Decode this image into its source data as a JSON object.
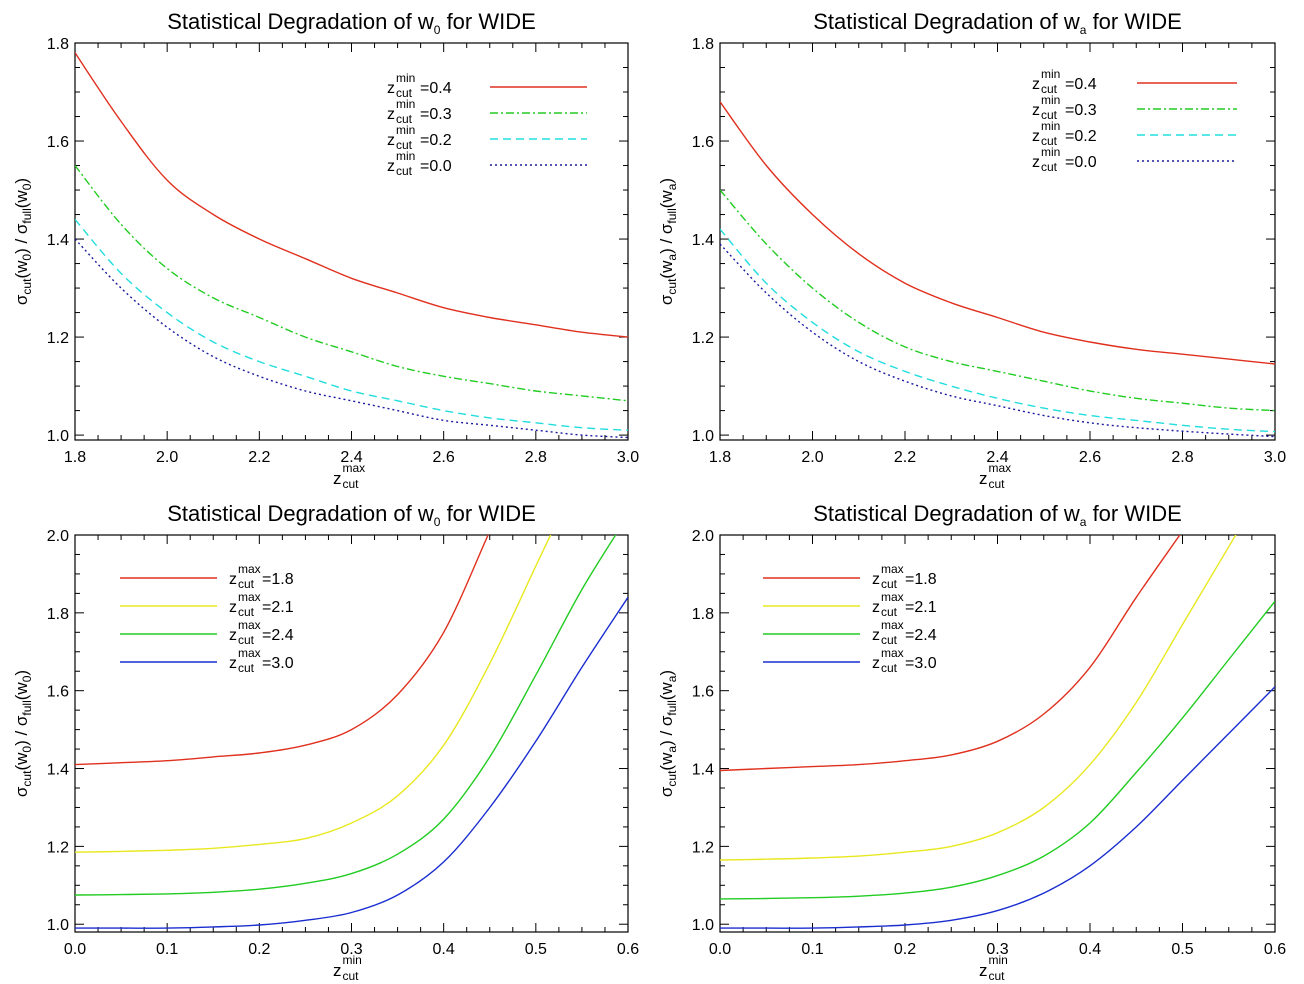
{
  "chart_data": [
    {
      "type": "line",
      "title": {
        "pre": "Statistical Degradation of w",
        "sub": "0",
        "post": " for WIDE"
      },
      "xlabel": {
        "base": "z",
        "sub": "cut",
        "sup": "max"
      },
      "ylabel": {
        "a": "σ",
        "a_sub": "cut",
        "b": "(w",
        "b_sub": "0",
        "c": ") / σ",
        "c_sub": "full",
        "d": "(w",
        "d_sub": "0",
        "e": ")"
      },
      "xlim": [
        1.8,
        3.0
      ],
      "ylim": [
        0.99,
        1.8
      ],
      "xticks": [
        "1.8",
        "2.0",
        "2.2",
        "2.4",
        "2.6",
        "2.8",
        "3.0"
      ],
      "yticks": [
        "1.0",
        "1.2",
        "1.4",
        "1.6",
        "1.8"
      ],
      "legend_position": "top-right",
      "x": [
        1.8,
        1.9,
        2.0,
        2.1,
        2.2,
        2.3,
        2.4,
        2.5,
        2.6,
        2.7,
        2.8,
        2.9,
        3.0
      ],
      "series": [
        {
          "name": "=0.4",
          "legend": {
            "base": "z",
            "sub": "cut",
            "sup": "min",
            "value": "=0.4"
          },
          "color": "#e0301e",
          "dash": "",
          "values": [
            1.78,
            1.64,
            1.52,
            1.45,
            1.4,
            1.36,
            1.32,
            1.29,
            1.26,
            1.24,
            1.225,
            1.21,
            1.2
          ]
        },
        {
          "name": "=0.3",
          "legend": {
            "base": "z",
            "sub": "cut",
            "sup": "min",
            "value": "=0.3"
          },
          "color": "#22cc22",
          "dash": "8,3,2,3",
          "values": [
            1.55,
            1.43,
            1.34,
            1.28,
            1.24,
            1.2,
            1.17,
            1.14,
            1.12,
            1.105,
            1.09,
            1.08,
            1.07
          ]
        },
        {
          "name": "=0.2",
          "legend": {
            "base": "z",
            "sub": "cut",
            "sup": "min",
            "value": "=0.2"
          },
          "color": "#22dddd",
          "dash": "8,5",
          "values": [
            1.44,
            1.33,
            1.25,
            1.19,
            1.15,
            1.12,
            1.09,
            1.07,
            1.05,
            1.035,
            1.025,
            1.015,
            1.01
          ]
        },
        {
          "name": "=0.0",
          "legend": {
            "base": "z",
            "sub": "cut",
            "sup": "min",
            "value": "=0.0"
          },
          "color": "#1a1aa0",
          "dash": "2,3",
          "values": [
            1.4,
            1.3,
            1.22,
            1.16,
            1.12,
            1.09,
            1.07,
            1.05,
            1.03,
            1.02,
            1.01,
            1.0,
            0.995
          ]
        }
      ]
    },
    {
      "type": "line",
      "title": {
        "pre": "Statistical Degradation of w",
        "sub": "a",
        "post": " for WIDE"
      },
      "xlabel": {
        "base": "z",
        "sub": "cut",
        "sup": "max"
      },
      "ylabel": {
        "a": "σ",
        "a_sub": "cut",
        "b": "(w",
        "b_sub": "a",
        "c": ") / σ",
        "c_sub": "full",
        "d": "(w",
        "d_sub": "a",
        "e": ")"
      },
      "xlim": [
        1.8,
        3.0
      ],
      "ylim": [
        0.99,
        1.8
      ],
      "xticks": [
        "1.8",
        "2.0",
        "2.2",
        "2.4",
        "2.6",
        "2.8",
        "3.0"
      ],
      "yticks": [
        "1.0",
        "1.2",
        "1.4",
        "1.6",
        "1.8"
      ],
      "legend_position": "top-right",
      "x": [
        1.8,
        1.9,
        2.0,
        2.1,
        2.2,
        2.3,
        2.4,
        2.5,
        2.6,
        2.7,
        2.8,
        2.9,
        3.0
      ],
      "series": [
        {
          "name": "=0.4",
          "legend": {
            "base": "z",
            "sub": "cut",
            "sup": "min",
            "value": "=0.4"
          },
          "color": "#e0301e",
          "dash": "",
          "values": [
            1.68,
            1.55,
            1.45,
            1.37,
            1.31,
            1.27,
            1.24,
            1.21,
            1.19,
            1.175,
            1.165,
            1.155,
            1.145
          ]
        },
        {
          "name": "=0.3",
          "legend": {
            "base": "z",
            "sub": "cut",
            "sup": "min",
            "value": "=0.3"
          },
          "color": "#22cc22",
          "dash": "8,3,2,3",
          "values": [
            1.5,
            1.39,
            1.3,
            1.23,
            1.18,
            1.15,
            1.13,
            1.11,
            1.09,
            1.075,
            1.065,
            1.055,
            1.05
          ]
        },
        {
          "name": "=0.2",
          "legend": {
            "base": "z",
            "sub": "cut",
            "sup": "min",
            "value": "=0.2"
          },
          "color": "#22dddd",
          "dash": "8,5",
          "values": [
            1.42,
            1.31,
            1.23,
            1.17,
            1.13,
            1.1,
            1.075,
            1.055,
            1.04,
            1.03,
            1.02,
            1.012,
            1.007
          ]
        },
        {
          "name": "=0.0",
          "legend": {
            "base": "z",
            "sub": "cut",
            "sup": "min",
            "value": "=0.0"
          },
          "color": "#1a1aa0",
          "dash": "2,3",
          "values": [
            1.39,
            1.29,
            1.21,
            1.15,
            1.11,
            1.08,
            1.06,
            1.04,
            1.025,
            1.015,
            1.008,
            1.002,
            0.997
          ]
        }
      ]
    },
    {
      "type": "line",
      "title": {
        "pre": "Statistical Degradation of w",
        "sub": "0",
        "post": " for WIDE"
      },
      "xlabel": {
        "base": "z",
        "sub": "cut",
        "sup": "min"
      },
      "ylabel": {
        "a": "σ",
        "a_sub": "cut",
        "b": "(w",
        "b_sub": "0",
        "c": ") / σ",
        "c_sub": "full",
        "d": "(w",
        "d_sub": "0",
        "e": ")"
      },
      "xlim": [
        0.0,
        0.6
      ],
      "ylim": [
        0.98,
        2.0
      ],
      "xticks": [
        "0.0",
        "0.1",
        "0.2",
        "0.3",
        "0.4",
        "0.5",
        "0.6"
      ],
      "yticks": [
        "1.0",
        "1.2",
        "1.4",
        "1.6",
        "1.8",
        "2.0"
      ],
      "legend_position": "top-left",
      "x": [
        0.0,
        0.05,
        0.1,
        0.15,
        0.2,
        0.25,
        0.3,
        0.35,
        0.4,
        0.45,
        0.5,
        0.55,
        0.6
      ],
      "series": [
        {
          "name": "=1.8",
          "legend": {
            "base": "z",
            "sub": "cut",
            "sup": "max",
            "value": "=1.8"
          },
          "color": "#e0301e",
          "dash": "",
          "values": [
            1.41,
            1.415,
            1.42,
            1.43,
            1.44,
            1.46,
            1.5,
            1.59,
            1.75,
            2.01,
            null,
            null,
            null
          ]
        },
        {
          "name": "=2.1",
          "legend": {
            "base": "z",
            "sub": "cut",
            "sup": "max",
            "value": "=2.1"
          },
          "color": "#e8e820",
          "dash": "",
          "values": [
            1.185,
            1.187,
            1.19,
            1.195,
            1.205,
            1.22,
            1.26,
            1.33,
            1.46,
            1.67,
            1.92,
            null,
            null
          ]
        },
        {
          "name": "=2.4",
          "legend": {
            "base": "z",
            "sub": "cut",
            "sup": "max",
            "value": "=2.4"
          },
          "color": "#22cc22",
          "dash": "",
          "values": [
            1.075,
            1.076,
            1.078,
            1.082,
            1.09,
            1.105,
            1.13,
            1.18,
            1.27,
            1.43,
            1.64,
            1.86,
            2.05
          ]
        },
        {
          "name": "=3.0",
          "legend": {
            "base": "z",
            "sub": "cut",
            "sup": "max",
            "value": "=3.0"
          },
          "color": "#1a2ed0",
          "dash": "",
          "values": [
            0.99,
            0.99,
            0.99,
            0.993,
            0.998,
            1.01,
            1.03,
            1.075,
            1.16,
            1.3,
            1.47,
            1.66,
            1.84
          ]
        }
      ]
    },
    {
      "type": "line",
      "title": {
        "pre": "Statistical Degradation of w",
        "sub": "a",
        "post": " for WIDE"
      },
      "xlabel": {
        "base": "z",
        "sub": "cut",
        "sup": "min"
      },
      "ylabel": {
        "a": "σ",
        "a_sub": "cut",
        "b": "(w",
        "b_sub": "a",
        "c": ") / σ",
        "c_sub": "full",
        "d": "(w",
        "d_sub": "a",
        "e": ")"
      },
      "xlim": [
        0.0,
        0.6
      ],
      "ylim": [
        0.98,
        2.0
      ],
      "xticks": [
        "0.0",
        "0.1",
        "0.2",
        "0.3",
        "0.4",
        "0.5",
        "0.6"
      ],
      "yticks": [
        "1.0",
        "1.2",
        "1.4",
        "1.6",
        "1.8",
        "2.0"
      ],
      "legend_position": "top-left",
      "x": [
        0.0,
        0.05,
        0.1,
        0.15,
        0.2,
        0.25,
        0.3,
        0.35,
        0.4,
        0.45,
        0.5,
        0.55,
        0.6
      ],
      "series": [
        {
          "name": "=1.8",
          "legend": {
            "base": "z",
            "sub": "cut",
            "sup": "max",
            "value": "=1.8"
          },
          "color": "#e0301e",
          "dash": "",
          "values": [
            1.395,
            1.4,
            1.405,
            1.41,
            1.42,
            1.435,
            1.47,
            1.54,
            1.66,
            1.84,
            2.01,
            null,
            null
          ]
        },
        {
          "name": "=2.1",
          "legend": {
            "base": "z",
            "sub": "cut",
            "sup": "max",
            "value": "=2.1"
          },
          "color": "#e8e820",
          "dash": "",
          "values": [
            1.165,
            1.167,
            1.17,
            1.175,
            1.185,
            1.2,
            1.235,
            1.3,
            1.41,
            1.57,
            1.77,
            1.97,
            null
          ]
        },
        {
          "name": "=2.4",
          "legend": {
            "base": "z",
            "sub": "cut",
            "sup": "max",
            "value": "=2.4"
          },
          "color": "#22cc22",
          "dash": "",
          "values": [
            1.065,
            1.066,
            1.068,
            1.072,
            1.08,
            1.095,
            1.125,
            1.175,
            1.26,
            1.39,
            1.53,
            1.68,
            1.83
          ]
        },
        {
          "name": "=3.0",
          "legend": {
            "base": "z",
            "sub": "cut",
            "sup": "max",
            "value": "=3.0"
          },
          "color": "#1a2ed0",
          "dash": "",
          "values": [
            0.99,
            0.99,
            0.99,
            0.993,
            0.998,
            1.01,
            1.035,
            1.08,
            1.15,
            1.25,
            1.37,
            1.49,
            1.61
          ]
        }
      ]
    }
  ]
}
